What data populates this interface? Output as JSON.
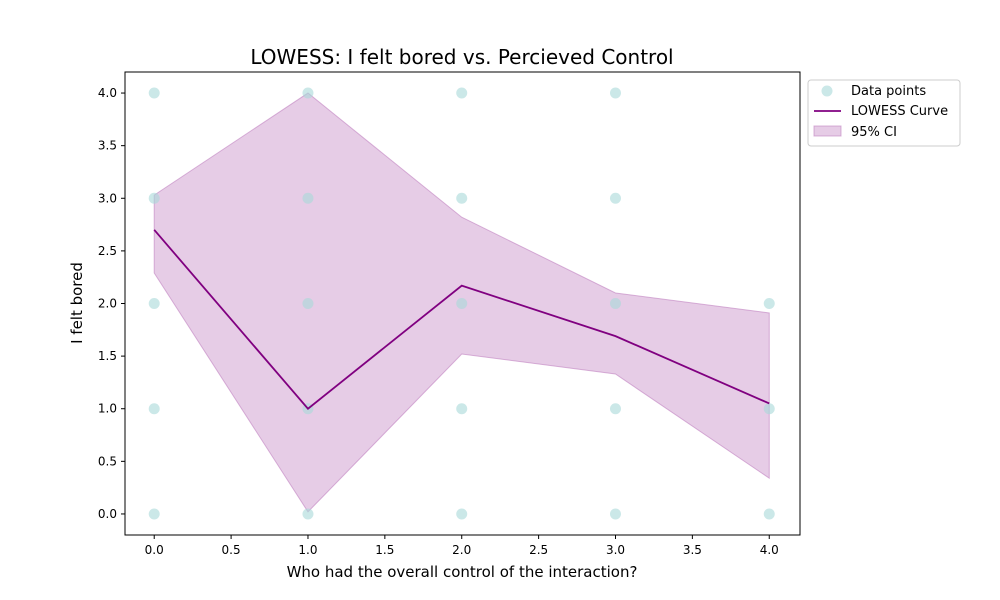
{
  "chart_data": {
    "type": "scatter",
    "title": "LOWESS: I felt bored vs. Percieved Control",
    "xlabel": "Who had the overall control of the interaction?",
    "ylabel": "I felt bored",
    "xlim": [
      -0.19,
      4.2
    ],
    "ylim": [
      -0.2,
      4.2
    ],
    "x_ticks": [
      "0.0",
      "0.5",
      "1.0",
      "1.5",
      "2.0",
      "2.5",
      "3.0",
      "3.5",
      "4.0"
    ],
    "y_ticks": [
      "0.0",
      "0.5",
      "1.0",
      "1.5",
      "2.0",
      "2.5",
      "3.0",
      "3.5",
      "4.0"
    ],
    "grid": false,
    "legend_position": "outside-top-right",
    "series": [
      {
        "name": "Data points",
        "kind": "scatter",
        "color": "#a8d8d8",
        "points": [
          [
            0,
            4
          ],
          [
            0,
            3
          ],
          [
            0,
            2
          ],
          [
            0,
            1
          ],
          [
            0,
            0
          ],
          [
            1,
            4
          ],
          [
            1,
            3
          ],
          [
            1,
            2
          ],
          [
            1,
            1
          ],
          [
            1,
            0
          ],
          [
            2,
            4
          ],
          [
            2,
            3
          ],
          [
            2,
            2
          ],
          [
            2,
            1
          ],
          [
            2,
            0
          ],
          [
            3,
            4
          ],
          [
            3,
            3
          ],
          [
            3,
            2
          ],
          [
            3,
            1
          ],
          [
            3,
            0
          ],
          [
            4,
            2
          ],
          [
            4,
            1
          ],
          [
            4,
            0
          ]
        ]
      },
      {
        "name": "LOWESS Curve",
        "kind": "line",
        "color": "#800080",
        "x": [
          0,
          1,
          2,
          3,
          4
        ],
        "y": [
          2.7,
          1.0,
          2.17,
          1.69,
          1.05
        ]
      },
      {
        "name": "95% CI",
        "kind": "band",
        "color": "#c080c0",
        "x": [
          0,
          1,
          2,
          3,
          4
        ],
        "lower": [
          2.29,
          0.02,
          1.52,
          1.33,
          0.34
        ],
        "upper": [
          3.03,
          4.0,
          2.82,
          2.1,
          1.91
        ]
      }
    ]
  }
}
